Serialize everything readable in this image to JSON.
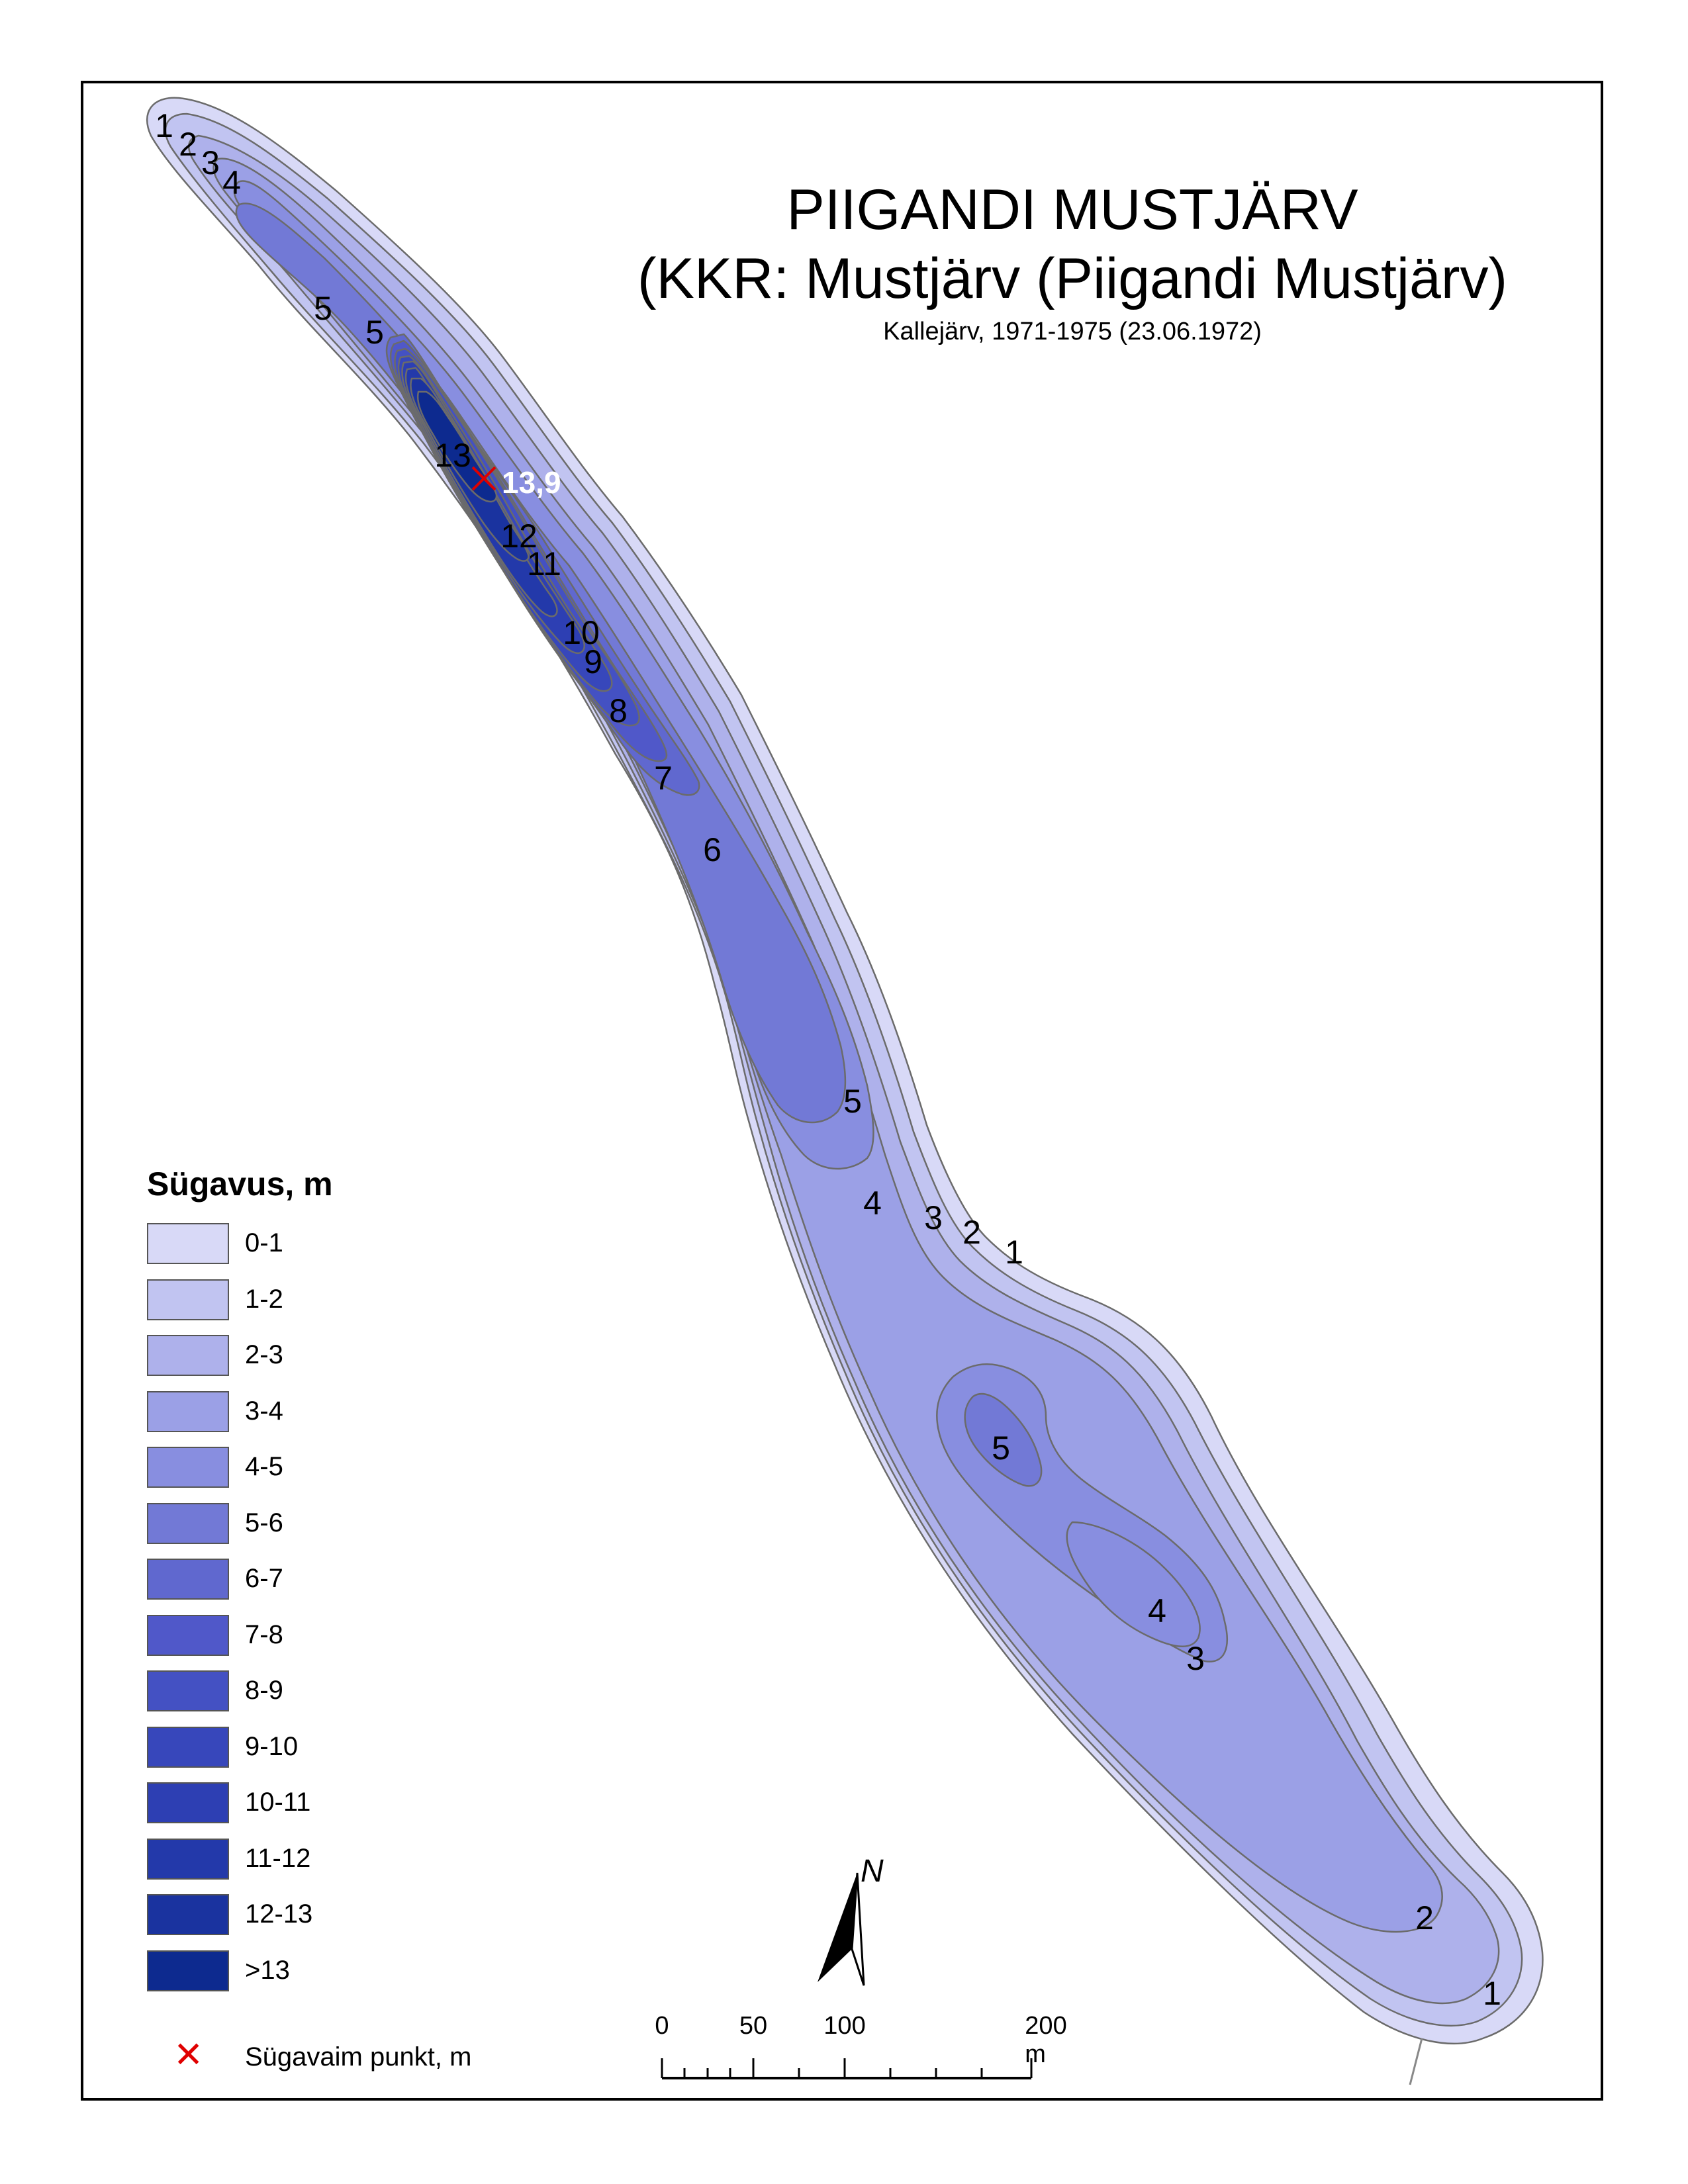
{
  "title": {
    "line1": "PIIGANDI MUSTJÄRV",
    "line2": "(KKR: Mustjärv (Piigandi Mustjärv)",
    "line3": "Kallejärv, 1971-1975 (23.06.1972)"
  },
  "deepest_point": {
    "label": "13,9"
  },
  "contour_labels": [
    "1",
    "2",
    "3",
    "4",
    "5",
    "5",
    "13",
    "12",
    "11",
    "10",
    "9",
    "8",
    "7",
    "6",
    "5",
    "4",
    "3",
    "2",
    "1",
    "5",
    "4",
    "3",
    "2",
    "1"
  ],
  "legend": {
    "title": "Sügavus, m",
    "items": [
      {
        "label": "0-1",
        "color": "#d8d9f7"
      },
      {
        "label": "1-2",
        "color": "#c1c4f1"
      },
      {
        "label": "2-3",
        "color": "#aeb1eb"
      },
      {
        "label": "3-4",
        "color": "#9ba0e6"
      },
      {
        "label": "4-5",
        "color": "#888ee0"
      },
      {
        "label": "5-6",
        "color": "#7279d6"
      },
      {
        "label": "6-7",
        "color": "#6068cf"
      },
      {
        "label": "7-8",
        "color": "#5058c9"
      },
      {
        "label": "8-9",
        "color": "#4451c3"
      },
      {
        "label": "9-10",
        "color": "#3747bb"
      },
      {
        "label": "10-11",
        "color": "#2d3fb3"
      },
      {
        "label": "11-12",
        "color": "#2339aa"
      },
      {
        "label": "12-13",
        "color": "#1a339f"
      },
      {
        "label": ">13",
        "color": "#0d2a8f"
      }
    ],
    "point_label": "Sügavaim punkt, m"
  },
  "north_arrow": {
    "label": "N"
  },
  "scale_bar": {
    "labels": [
      "0",
      "50",
      "100",
      "200 m"
    ]
  }
}
